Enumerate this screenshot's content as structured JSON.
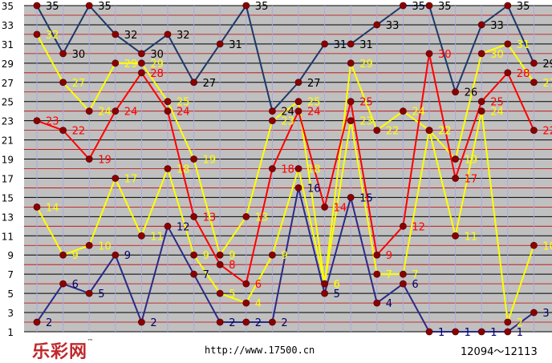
{
  "watermark": {
    "logo_text": "乐彩网",
    "logo_mark": "™",
    "url": "http://www.17500.cn",
    "issue_range": "12094～12113"
  },
  "chart_data": {
    "type": "line",
    "x_count": 20,
    "y_ticks": [
      1,
      3,
      5,
      7,
      9,
      11,
      13,
      15,
      17,
      19,
      21,
      23,
      25,
      27,
      29,
      31,
      33,
      35
    ],
    "ylim": [
      1,
      35
    ],
    "grid": true,
    "colors": {
      "plot_bg": "#c0c0c0",
      "grid_dark": "#000000",
      "grid_red": "#c00000",
      "grid_vertical": "#a9a9e0",
      "marker_fill": "#8b0000"
    },
    "series": [
      {
        "color": "#1c3a6a",
        "label_color": "#000000",
        "values": [
          35,
          30,
          35,
          32,
          30,
          32,
          27,
          31,
          35,
          24,
          27,
          31,
          31,
          33,
          35,
          35,
          26,
          33,
          35,
          29
        ]
      },
      {
        "color": "#ffff00",
        "label_color": "#ffff00",
        "values": [
          32,
          27,
          24,
          29,
          29,
          25,
          19,
          9,
          13,
          23,
          25,
          6,
          29,
          22,
          24,
          22,
          19,
          30,
          31,
          27
        ]
      },
      {
        "color": "#ff0000",
        "label_color": "#ff0000",
        "values": [
          23,
          22,
          19,
          24,
          28,
          24,
          13,
          8,
          6,
          18,
          24,
          14,
          25,
          9,
          12,
          30,
          17,
          25,
          28,
          22
        ]
      },
      {
        "color": "#ffff00",
        "label_color": "#ffff00",
        "values": [
          14,
          9,
          10,
          17,
          11,
          18,
          9,
          5,
          4,
          9,
          18,
          6,
          23,
          7,
          7,
          22,
          11,
          24,
          2,
          10
        ]
      },
      {
        "color": "#2a2a88",
        "label_color": "#000066",
        "values": [
          2,
          6,
          5,
          9,
          2,
          12,
          7,
          2,
          2,
          2,
          16,
          5,
          15,
          4,
          6,
          1,
          1,
          1,
          1,
          3
        ]
      }
    ]
  }
}
